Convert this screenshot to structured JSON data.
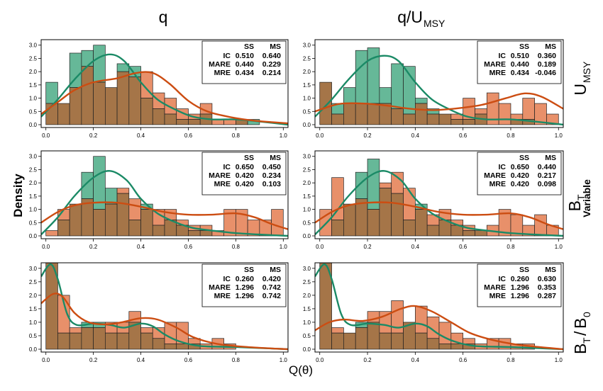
{
  "labels": {
    "col_titles": [
      "q",
      "q/U"
    ],
    "col_title_sub": "MSY",
    "y_axis": "Density",
    "x_axis": "Q(θ)",
    "row_labels": [
      {
        "main": "U",
        "sub": "MSY",
        "extra": ""
      },
      {
        "main": "B",
        "sub": "T",
        "extra": "Variable"
      },
      {
        "main": "B",
        "sub": "T",
        "slash": "/",
        "main2": "B",
        "sub2": "0",
        "extra": ""
      }
    ]
  },
  "colors": {
    "ss_fill": "#66b898",
    "ms_fill": "#e8906a",
    "overlap_fill": "#a57548",
    "ss_line": "#1b8a66",
    "ms_line": "#cc4d12"
  },
  "chart_data": {
    "type": "histogram-grid",
    "x_ticks": [
      "0.0",
      "0.2",
      "0.4",
      "0.6",
      "0.8",
      "1.0"
    ],
    "y_ticks": [
      "0.0",
      "0.5",
      "1.0",
      "1.5",
      "2.0",
      "2.5",
      "3.0"
    ],
    "xlim": [
      -0.02,
      1.02
    ],
    "ylim": [
      0,
      3.1
    ],
    "bin_edges_start": 0.0,
    "bin_width": 0.05,
    "legend": {
      "col1": "SS",
      "col2": "MS",
      "row_names": [
        "IC",
        "MARE",
        "MRE"
      ]
    },
    "panels": [
      {
        "row": 0,
        "col": 0,
        "ss": [
          1.6,
          0.8,
          2.7,
          2.8,
          3.0,
          1.4,
          2.3,
          2.2,
          1.0,
          0.6,
          0.4,
          0.2,
          0.2,
          0.4,
          0.0,
          0.0,
          0.2,
          0.2,
          0.0,
          0.0
        ],
        "ms": [
          0.8,
          0.8,
          1.4,
          2.2,
          1.6,
          1.4,
          2.0,
          1.8,
          2.0,
          1.2,
          1.0,
          0.6,
          0.4,
          0.8,
          0.2,
          0.2,
          0.2,
          0.0,
          0.0,
          0.0
        ],
        "ss_curve": [
          [
            -0.02,
            0.3
          ],
          [
            0.05,
            0.95
          ],
          [
            0.12,
            1.7
          ],
          [
            0.2,
            2.4
          ],
          [
            0.27,
            2.65
          ],
          [
            0.33,
            2.4
          ],
          [
            0.4,
            1.6
          ],
          [
            0.47,
            0.95
          ],
          [
            0.55,
            0.55
          ],
          [
            0.62,
            0.3
          ],
          [
            0.7,
            0.2
          ],
          [
            0.8,
            0.2
          ],
          [
            0.9,
            0.12
          ],
          [
            1.02,
            0.0
          ]
        ],
        "ms_curve": [
          [
            -0.02,
            0.4
          ],
          [
            0.05,
            0.85
          ],
          [
            0.12,
            1.3
          ],
          [
            0.2,
            1.6
          ],
          [
            0.3,
            1.75
          ],
          [
            0.38,
            1.95
          ],
          [
            0.45,
            1.95
          ],
          [
            0.52,
            1.55
          ],
          [
            0.6,
            0.9
          ],
          [
            0.68,
            0.5
          ],
          [
            0.78,
            0.28
          ],
          [
            0.88,
            0.15
          ],
          [
            1.02,
            0.05
          ]
        ],
        "stats": {
          "IC": [
            "0.510",
            "0.640"
          ],
          "MARE": [
            "0.440",
            "0.229"
          ],
          "MRE": [
            "0.434",
            "0.214"
          ]
        }
      },
      {
        "row": 0,
        "col": 1,
        "ss": [
          1.6,
          0.8,
          1.4,
          2.8,
          2.9,
          1.4,
          2.3,
          2.2,
          1.0,
          0.6,
          0.4,
          0.2,
          0.2,
          0.4,
          0.0,
          0.0,
          0.2,
          0.2,
          0.0,
          0.0
        ],
        "ms": [
          1.6,
          0.4,
          0.8,
          0.8,
          0.8,
          0.8,
          0.6,
          0.4,
          0.8,
          0.4,
          0.4,
          0.4,
          1.0,
          0.6,
          1.2,
          0.8,
          0.4,
          1.0,
          0.8,
          0.4
        ],
        "ss_curve": [
          [
            -0.02,
            0.3
          ],
          [
            0.05,
            0.95
          ],
          [
            0.12,
            1.7
          ],
          [
            0.2,
            2.4
          ],
          [
            0.27,
            2.6
          ],
          [
            0.33,
            2.4
          ],
          [
            0.4,
            1.6
          ],
          [
            0.47,
            0.95
          ],
          [
            0.55,
            0.55
          ],
          [
            0.62,
            0.3
          ],
          [
            0.7,
            0.2
          ],
          [
            0.8,
            0.2
          ],
          [
            0.9,
            0.12
          ],
          [
            1.02,
            0.0
          ]
        ],
        "ms_curve": [
          [
            -0.02,
            0.5
          ],
          [
            0.08,
            0.78
          ],
          [
            0.18,
            0.8
          ],
          [
            0.28,
            0.72
          ],
          [
            0.38,
            0.6
          ],
          [
            0.48,
            0.55
          ],
          [
            0.58,
            0.62
          ],
          [
            0.68,
            0.75
          ],
          [
            0.78,
            1.0
          ],
          [
            0.86,
            1.18
          ],
          [
            0.93,
            1.05
          ],
          [
            1.02,
            0.6
          ]
        ],
        "stats": {
          "IC": [
            "0.510",
            "0.360"
          ],
          "MARE": [
            "0.440",
            "0.189"
          ],
          "MRE": [
            "0.434",
            "-0.046"
          ]
        }
      },
      {
        "row": 1,
        "col": 0,
        "ss": [
          0.0,
          0.6,
          1.2,
          2.4,
          3.0,
          1.8,
          1.6,
          0.6,
          1.2,
          0.4,
          0.6,
          0.4,
          0.2,
          0.2,
          0.0,
          0.0,
          0.0,
          0.0,
          0.0,
          0.0
        ],
        "ms": [
          0.2,
          1.0,
          1.2,
          1.4,
          1.0,
          1.2,
          1.8,
          1.4,
          1.0,
          1.0,
          1.0,
          0.6,
          0.4,
          0.4,
          0.2,
          1.0,
          1.0,
          0.6,
          0.6,
          1.0
        ],
        "ss_curve": [
          [
            -0.02,
            0.05
          ],
          [
            0.05,
            0.7
          ],
          [
            0.12,
            1.5
          ],
          [
            0.2,
            2.2
          ],
          [
            0.27,
            2.45
          ],
          [
            0.34,
            2.1
          ],
          [
            0.4,
            1.4
          ],
          [
            0.47,
            0.85
          ],
          [
            0.55,
            0.5
          ],
          [
            0.62,
            0.3
          ],
          [
            0.7,
            0.2
          ],
          [
            0.78,
            0.12
          ],
          [
            0.9,
            0.05
          ],
          [
            1.02,
            0.0
          ]
        ],
        "ms_curve": [
          [
            -0.02,
            0.5
          ],
          [
            0.05,
            0.9
          ],
          [
            0.12,
            1.15
          ],
          [
            0.2,
            1.25
          ],
          [
            0.3,
            1.25
          ],
          [
            0.4,
            1.1
          ],
          [
            0.5,
            0.9
          ],
          [
            0.6,
            0.8
          ],
          [
            0.7,
            0.8
          ],
          [
            0.8,
            0.85
          ],
          [
            0.88,
            0.7
          ],
          [
            0.95,
            0.45
          ],
          [
            1.02,
            0.25
          ]
        ],
        "stats": {
          "IC": [
            "0.650",
            "0.450"
          ],
          "MARE": [
            "0.420",
            "0.234"
          ],
          "MRE": [
            "0.420",
            "0.103"
          ]
        }
      },
      {
        "row": 1,
        "col": 1,
        "ss": [
          0.0,
          0.6,
          1.2,
          2.4,
          2.9,
          1.8,
          1.6,
          0.6,
          1.2,
          0.4,
          0.6,
          0.4,
          0.2,
          0.2,
          0.0,
          0.0,
          0.0,
          0.0,
          0.0,
          0.0
        ],
        "ms": [
          1.0,
          2.2,
          1.2,
          1.4,
          1.0,
          2.0,
          2.4,
          1.8,
          1.0,
          0.8,
          1.0,
          0.6,
          0.4,
          0.2,
          0.4,
          1.0,
          0.8,
          0.4,
          0.8,
          0.4
        ],
        "ss_curve": [
          [
            -0.02,
            0.05
          ],
          [
            0.05,
            0.7
          ],
          [
            0.12,
            1.5
          ],
          [
            0.2,
            2.2
          ],
          [
            0.27,
            2.45
          ],
          [
            0.34,
            2.1
          ],
          [
            0.4,
            1.4
          ],
          [
            0.47,
            0.85
          ],
          [
            0.55,
            0.5
          ],
          [
            0.62,
            0.3
          ],
          [
            0.7,
            0.2
          ],
          [
            0.78,
            0.12
          ],
          [
            0.9,
            0.05
          ],
          [
            1.02,
            0.0
          ]
        ],
        "ms_curve": [
          [
            -0.02,
            0.5
          ],
          [
            0.05,
            0.9
          ],
          [
            0.12,
            1.15
          ],
          [
            0.2,
            1.25
          ],
          [
            0.3,
            1.25
          ],
          [
            0.4,
            1.1
          ],
          [
            0.5,
            0.9
          ],
          [
            0.6,
            0.8
          ],
          [
            0.7,
            0.8
          ],
          [
            0.8,
            0.85
          ],
          [
            0.88,
            0.7
          ],
          [
            0.95,
            0.45
          ],
          [
            1.02,
            0.25
          ]
        ],
        "stats": {
          "IC": [
            "0.650",
            "0.440"
          ],
          "MARE": [
            "0.420",
            "0.217"
          ],
          "MRE": [
            "0.420",
            "0.098"
          ]
        }
      },
      {
        "row": 2,
        "col": 0,
        "ss": [
          3.2,
          0.6,
          0.6,
          1.0,
          1.0,
          0.6,
          0.6,
          1.0,
          0.6,
          0.4,
          0.2,
          0.2,
          0.2,
          0.0,
          0.0,
          0.0,
          0.0,
          0.0,
          0.0,
          0.0
        ],
        "ms": [
          3.2,
          2.0,
          0.8,
          0.8,
          0.8,
          1.0,
          1.0,
          1.4,
          0.8,
          0.8,
          1.0,
          1.0,
          0.4,
          0.2,
          0.4,
          0.2,
          0.0,
          0.0,
          0.0,
          0.0
        ],
        "ss_curve": [
          [
            -0.02,
            2.7
          ],
          [
            0.02,
            3.15
          ],
          [
            0.05,
            2.6
          ],
          [
            0.09,
            1.3
          ],
          [
            0.13,
            0.9
          ],
          [
            0.2,
            0.95
          ],
          [
            0.27,
            0.9
          ],
          [
            0.33,
            0.8
          ],
          [
            0.4,
            0.95
          ],
          [
            0.45,
            0.85
          ],
          [
            0.5,
            0.55
          ],
          [
            0.56,
            0.3
          ],
          [
            0.65,
            0.12
          ],
          [
            0.8,
            0.08
          ],
          [
            1.02,
            0.0
          ]
        ],
        "ms_curve": [
          [
            -0.02,
            1.7
          ],
          [
            0.03,
            2.05
          ],
          [
            0.07,
            1.95
          ],
          [
            0.12,
            1.35
          ],
          [
            0.18,
            1.0
          ],
          [
            0.25,
            0.92
          ],
          [
            0.32,
            1.0
          ],
          [
            0.4,
            1.15
          ],
          [
            0.47,
            1.1
          ],
          [
            0.55,
            0.8
          ],
          [
            0.62,
            0.45
          ],
          [
            0.72,
            0.2
          ],
          [
            0.85,
            0.08
          ],
          [
            1.02,
            0.0
          ]
        ],
        "stats": {
          "IC": [
            "0.260",
            "0.420"
          ],
          "MARE": [
            "1.296",
            "0.742"
          ],
          "MRE": [
            "1.296",
            "0.742"
          ]
        }
      },
      {
        "row": 2,
        "col": 1,
        "ss": [
          3.2,
          0.6,
          0.6,
          1.0,
          1.0,
          0.6,
          0.6,
          1.0,
          0.6,
          0.4,
          0.2,
          0.2,
          0.2,
          0.0,
          0.0,
          0.0,
          0.0,
          0.0,
          0.0,
          0.0
        ],
        "ms": [
          3.2,
          0.8,
          0.6,
          0.8,
          1.4,
          1.4,
          1.8,
          1.0,
          1.6,
          1.2,
          1.0,
          0.6,
          0.4,
          0.2,
          0.4,
          0.4,
          0.2,
          0.2,
          0.0,
          0.0
        ],
        "ss_curve": [
          [
            -0.02,
            2.7
          ],
          [
            0.02,
            3.15
          ],
          [
            0.05,
            2.6
          ],
          [
            0.09,
            1.3
          ],
          [
            0.13,
            0.9
          ],
          [
            0.2,
            0.95
          ],
          [
            0.27,
            0.9
          ],
          [
            0.33,
            0.8
          ],
          [
            0.4,
            0.95
          ],
          [
            0.45,
            0.85
          ],
          [
            0.5,
            0.55
          ],
          [
            0.56,
            0.3
          ],
          [
            0.65,
            0.12
          ],
          [
            0.8,
            0.08
          ],
          [
            1.02,
            0.0
          ]
        ],
        "ms_curve": [
          [
            -0.02,
            0.7
          ],
          [
            0.04,
            1.0
          ],
          [
            0.1,
            1.1
          ],
          [
            0.18,
            1.05
          ],
          [
            0.26,
            1.2
          ],
          [
            0.34,
            1.5
          ],
          [
            0.4,
            1.6
          ],
          [
            0.47,
            1.4
          ],
          [
            0.55,
            1.0
          ],
          [
            0.63,
            0.6
          ],
          [
            0.72,
            0.35
          ],
          [
            0.82,
            0.18
          ],
          [
            0.92,
            0.08
          ],
          [
            1.02,
            0.0
          ]
        ],
        "stats": {
          "IC": [
            "0.260",
            "0.630"
          ],
          "MARE": [
            "1.296",
            "0.353"
          ],
          "MRE": [
            "1.296",
            "0.287"
          ]
        }
      }
    ]
  }
}
